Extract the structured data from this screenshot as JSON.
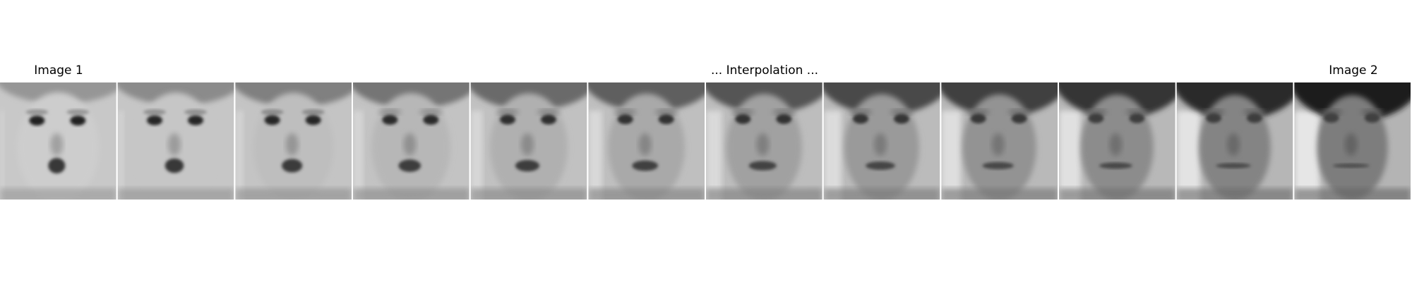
{
  "labels": {
    "start": "Image 1",
    "middle": "... Interpolation ...",
    "end": "Image 2"
  },
  "frames": {
    "count": 12,
    "colormap": "grayscale",
    "start_subject": "child face",
    "end_subject": "adult face"
  }
}
